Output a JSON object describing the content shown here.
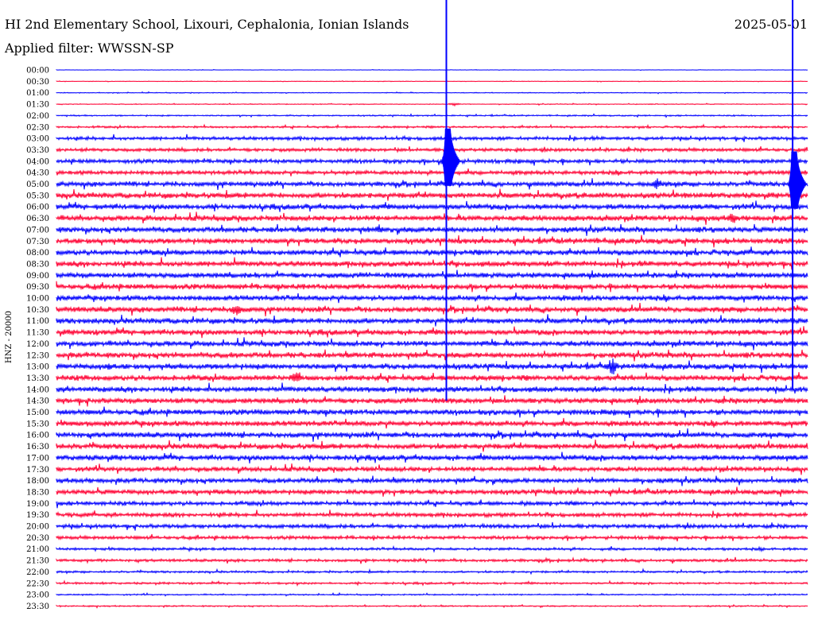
{
  "header": {
    "station": "HI 2nd Elementary School, Lixouri, Cephalonia, Ionian Islands",
    "date": "2025-05-01",
    "filter": "Applied filter: WWSSN-SP"
  },
  "colors": {
    "even_trace": "#0000ff",
    "odd_trace": "#ff0033"
  },
  "chart_data": {
    "type": "line",
    "title": "HI 2nd Elementary School, Lixouri, Cephalonia, Ionian Islands",
    "ylabel": "HNZ - 20000",
    "row_labels": [
      "00:00",
      "00:30",
      "01:00",
      "01:30",
      "02:00",
      "02:30",
      "03:00",
      "03:30",
      "04:00",
      "04:30",
      "05:00",
      "05:30",
      "06:00",
      "06:30",
      "07:00",
      "07:30",
      "08:00",
      "08:30",
      "09:00",
      "09:30",
      "10:00",
      "10:30",
      "11:00",
      "11:30",
      "12:00",
      "12:30",
      "13:00",
      "13:30",
      "14:00",
      "14:30",
      "15:00",
      "15:30",
      "16:00",
      "16:30",
      "17:00",
      "17:30",
      "18:00",
      "18:30",
      "19:00",
      "19:30",
      "20:00",
      "20:30",
      "21:00",
      "21:30",
      "22:00",
      "22:30",
      "23:00",
      "23:30"
    ],
    "noise_level": [
      0.3,
      0.4,
      0.6,
      0.6,
      1,
      1.5,
      2.5,
      2.5,
      3,
      3,
      3.5,
      4,
      4,
      4,
      4,
      4,
      4,
      4,
      4,
      4,
      4,
      4,
      4,
      4,
      4,
      4,
      4,
      4,
      4,
      4,
      4,
      4,
      4,
      4,
      4,
      3.5,
      3.5,
      3.5,
      3,
      3,
      3,
      2.5,
      2,
      2,
      1.5,
      1.5,
      1,
      1
    ],
    "events": [
      {
        "row": 3,
        "x_frac": 0.53,
        "amp": 2,
        "note": ""
      },
      {
        "row": 8,
        "x_frac": 0.52,
        "amp": 12,
        "note": ""
      },
      {
        "row": 10,
        "x_frac": 0.8,
        "amp": 8,
        "note": ""
      },
      {
        "row": 13,
        "x_frac": 0.9,
        "amp": 8,
        "note": ""
      },
      {
        "row": 14,
        "x_frac": 0.43,
        "amp": 6,
        "note": ""
      },
      {
        "row": 21,
        "x_frac": 0.24,
        "amp": 10,
        "note": ""
      },
      {
        "row": 26,
        "x_frac": 0.07,
        "amp": 6,
        "note": ""
      },
      {
        "row": 26,
        "x_frac": 0.74,
        "amp": 12,
        "note": ""
      },
      {
        "row": 27,
        "x_frac": 0.32,
        "amp": 10,
        "note": ""
      }
    ],
    "large_events": [
      {
        "x_frac": 0.519,
        "top_row": 0,
        "bottom_row": 29,
        "peak_row": 8
      },
      {
        "x_frac": 0.98,
        "top_row": 0,
        "bottom_row": 28,
        "peak_row": 10
      }
    ]
  }
}
